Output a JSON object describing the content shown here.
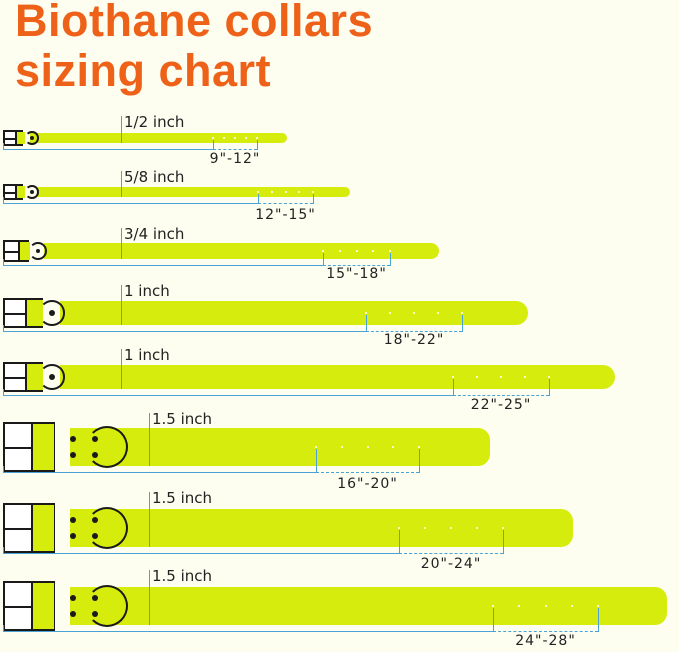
{
  "title": {
    "line1": "Biothane collars",
    "line2": "sizing chart"
  },
  "colors": {
    "title": "#ee6119",
    "strap": "#d6ec0c",
    "measure_line": "#4aa3d6",
    "hardware": "#1a1a1a",
    "background": "#fdfdf0"
  },
  "collars": [
    {
      "width": "1/2 inch",
      "size_range": "9\"-12\"",
      "holes": 5
    },
    {
      "width": "5/8 inch",
      "size_range": "12\"-15\"",
      "holes": 5
    },
    {
      "width": "3/4 inch",
      "size_range": "15\"-18\"",
      "holes": 5
    },
    {
      "width": "1 inch",
      "size_range": "18\"-22\"",
      "holes": 5
    },
    {
      "width": "1 inch",
      "size_range": "22\"-25\"",
      "holes": 5
    },
    {
      "width": "1.5 inch",
      "size_range": "16\"-20\"",
      "holes": 5
    },
    {
      "width": "1.5 inch",
      "size_range": "20\"-24\"",
      "holes": 5
    },
    {
      "width": "1.5 inch",
      "size_range": "24\"-28\"",
      "holes": 5
    }
  ]
}
